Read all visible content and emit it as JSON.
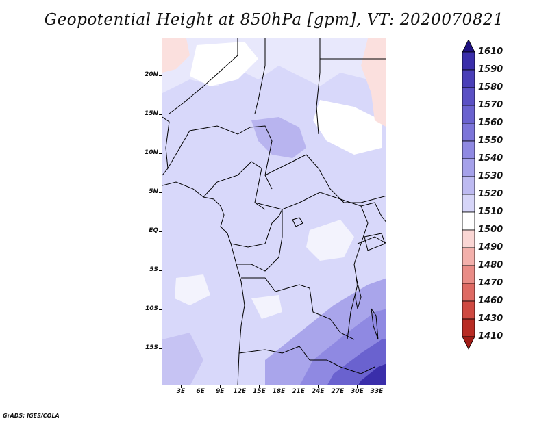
{
  "title": "Geopotential Height at 850hPa [gpm], VT: 2020070821",
  "footer": "GrADS: IGES/COLA",
  "map": {
    "lat_labels": [
      "20N",
      "15N",
      "10N",
      "5N",
      "EQ",
      "5S",
      "10S",
      "15S"
    ],
    "lon_labels": [
      "3E",
      "6E",
      "9E",
      "12E",
      "15E",
      "18E",
      "21E",
      "24E",
      "27E",
      "30E",
      "33E"
    ]
  },
  "colorbar": {
    "levels": [
      "1610",
      "1590",
      "1580",
      "1570",
      "1560",
      "1550",
      "1540",
      "1530",
      "1520",
      "1510",
      "1500",
      "1490",
      "1480",
      "1470",
      "1460",
      "1430",
      "1410"
    ],
    "colors": [
      "#2a1c9c",
      "#3a2eaa",
      "#4a3fb8",
      "#5a50c4",
      "#6a62cf",
      "#7c75d9",
      "#8f89e2",
      "#a5a1ea",
      "#bdbaf1",
      "#d6d5f8",
      "#ffffff",
      "#fad6d4",
      "#f3b0ab",
      "#e98c86",
      "#de6a63",
      "#cf4a42",
      "#b82c24"
    ],
    "top_color": "#1e1080",
    "bottom_color": "#a01c16"
  }
}
